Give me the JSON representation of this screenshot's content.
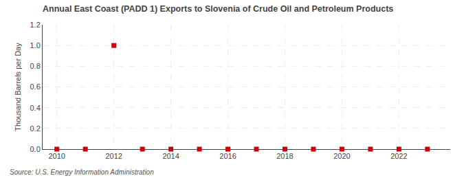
{
  "chart_data": {
    "type": "scatter",
    "title": "Annual East Coast (PADD 1) Exports to Slovenia of Crude Oil and Petroleum Products",
    "ylabel": "Thousand Barrels per Day",
    "annotations": [
      "Source: U.S. Energy Information Administration"
    ],
    "x": [
      2010,
      2011,
      2012,
      2013,
      2014,
      2015,
      2016,
      2017,
      2018,
      2019,
      2020,
      2021,
      2022,
      2023
    ],
    "values": [
      0.0,
      0.0,
      1.0,
      0.0,
      0.0,
      0.0,
      0.0,
      0.0,
      0.0,
      0.0,
      0.0,
      0.0,
      0.0,
      0.0
    ],
    "color": "#cc0000",
    "marker": "square",
    "xlim": [
      2009.5,
      2023.8
    ],
    "xticks": [
      2010,
      2012,
      2014,
      2016,
      2018,
      2020,
      2022
    ],
    "ylim": [
      0.0,
      1.2
    ],
    "yticks": [
      {
        "value": 0.0,
        "label": "0.0"
      },
      0.2,
      0.4,
      0.6,
      0.8,
      {
        "value": 1.0,
        "label": "1.0"
      },
      1.2
    ],
    "grid": true
  }
}
